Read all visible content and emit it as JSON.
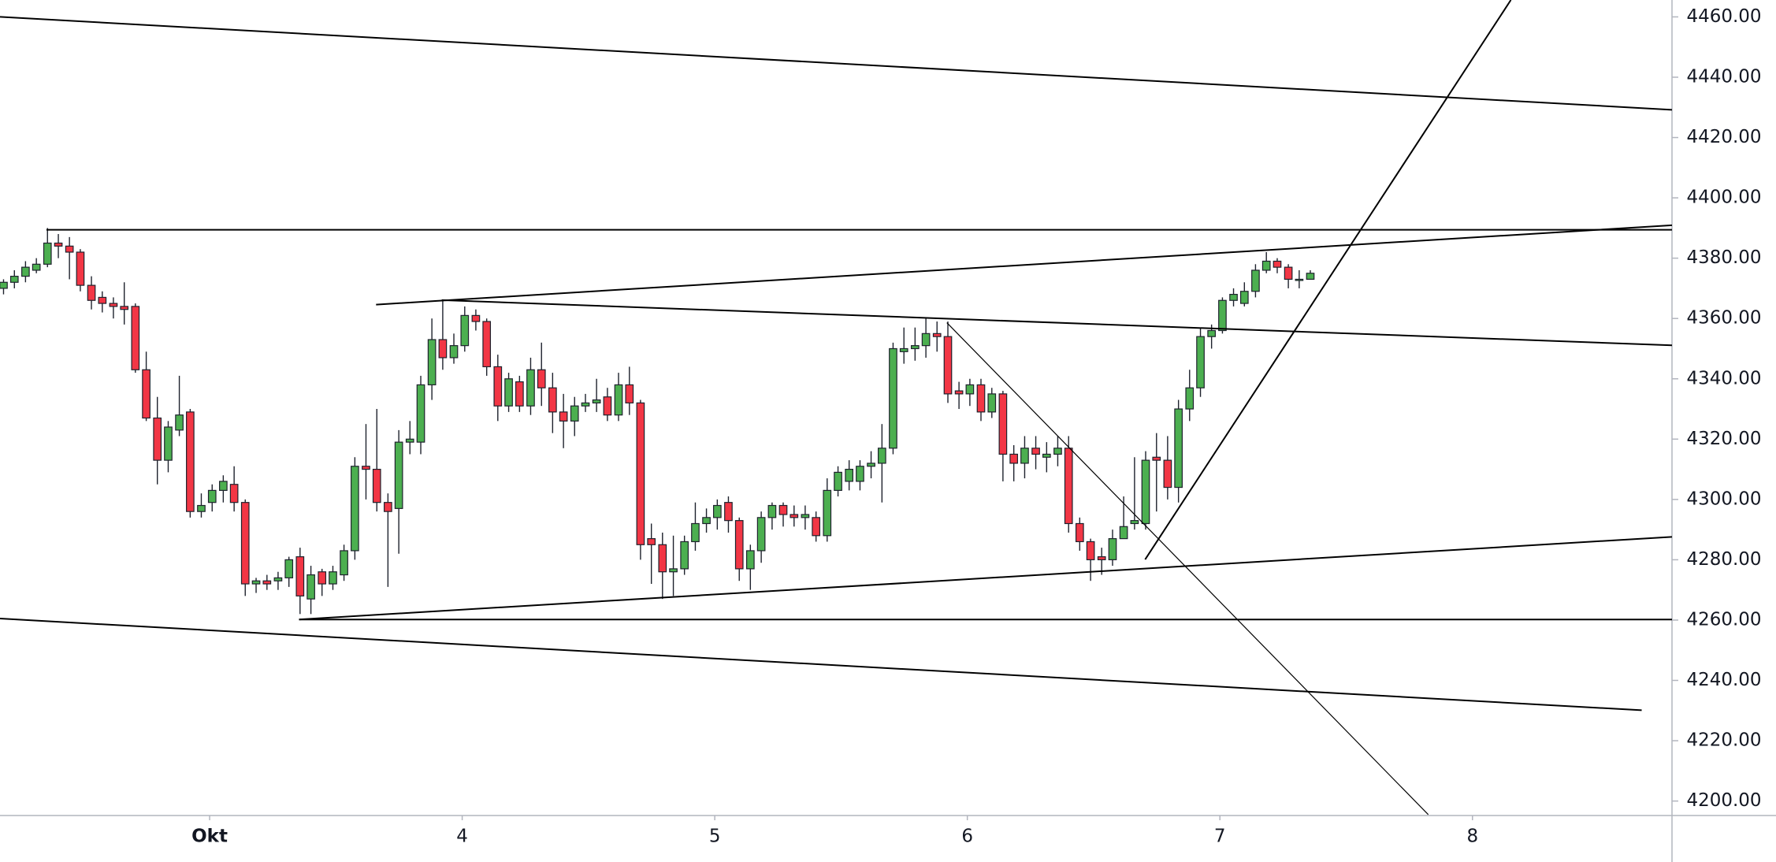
{
  "chart_data": {
    "type": "candlestick",
    "candles": {
      "x": [
        2.184,
        2.227,
        2.271,
        2.314,
        2.358,
        2.401,
        2.445,
        2.488,
        2.532,
        2.575,
        2.619,
        2.662,
        2.706,
        2.749,
        2.793,
        2.836,
        2.88,
        2.923,
        2.967,
        3.01,
        3.054,
        3.097,
        3.141,
        3.184,
        3.227,
        3.271,
        3.314,
        3.358,
        3.401,
        3.445,
        3.488,
        3.532,
        3.575,
        3.619,
        3.662,
        3.706,
        3.749,
        3.793,
        3.836,
        3.88,
        3.923,
        3.967,
        4.01,
        4.054,
        4.097,
        4.141,
        4.184,
        4.227,
        4.271,
        4.314,
        4.358,
        4.401,
        4.445,
        4.488,
        4.532,
        4.575,
        4.619,
        4.662,
        4.706,
        4.749,
        4.793,
        4.836,
        4.88,
        4.923,
        4.967,
        5.01,
        5.054,
        5.097,
        5.141,
        5.184,
        5.227,
        5.271,
        5.314,
        5.358,
        5.401,
        5.445,
        5.488,
        5.532,
        5.575,
        5.619,
        5.662,
        5.706,
        5.749,
        5.793,
        5.836,
        5.88,
        5.923,
        5.967,
        6.01,
        6.054,
        6.097,
        6.141,
        6.184,
        6.227,
        6.271,
        6.314,
        6.358,
        6.401,
        6.445,
        6.488,
        6.532,
        6.575,
        6.619,
        6.662,
        6.706,
        6.749,
        6.793,
        6.836,
        6.88,
        6.923,
        6.967,
        7.01,
        7.054,
        7.097,
        7.141,
        7.184,
        7.227,
        7.271,
        7.314,
        7.358
      ],
      "open": [
        4370,
        4372,
        4374,
        4376,
        4378,
        4385,
        4384,
        4382,
        4371,
        4367,
        4365,
        4364,
        4364,
        4343,
        4327,
        4313,
        4323,
        4329,
        4296,
        4299,
        4303,
        4305,
        4299,
        4272,
        4273,
        4273,
        4274,
        4281,
        4267,
        4276,
        4272,
        4275,
        4283,
        4311,
        4310,
        4299,
        4297,
        4319,
        4319,
        4338,
        4353,
        4347,
        4351,
        4361,
        4359,
        4344,
        4331,
        4339,
        4331,
        4343,
        4337,
        4329,
        4326,
        4331,
        4332,
        4334,
        4328,
        4338,
        4332,
        4287,
        4285,
        4276,
        4277,
        4286,
        4292,
        4294,
        4299,
        4293,
        4277,
        4283,
        4294,
        4298,
        4295,
        4294,
        4294,
        4288,
        4303,
        4306,
        4306,
        4311,
        4312,
        4317,
        4349,
        4350,
        4351,
        4355,
        4354,
        4336,
        4335,
        4338,
        4329,
        4335,
        4315,
        4312,
        4317,
        4314,
        4315,
        4317,
        4292,
        4286,
        4281,
        4280,
        4287,
        4292,
        4292,
        4314,
        4313,
        4304,
        4330,
        4337,
        4354,
        4356,
        4366,
        4365,
        4369,
        4376,
        4379,
        4377,
        4373,
        4373
      ],
      "high": [
        4373,
        4376,
        4379,
        4380,
        4390,
        4388,
        4387,
        4383,
        4374,
        4369,
        4367,
        4372,
        4365,
        4349,
        4334,
        4326,
        4341,
        4330,
        4302,
        4305,
        4308,
        4311,
        4300,
        4274,
        4275,
        4276,
        4281,
        4284,
        4278,
        4277,
        4278,
        4285,
        4314,
        4325,
        4330,
        4302,
        4323,
        4326,
        4341,
        4360,
        4366,
        4355,
        4364,
        4363,
        4360,
        4348,
        4342,
        4341,
        4347,
        4352,
        4342,
        4335,
        4334,
        4335,
        4340,
        4337,
        4342,
        4344,
        4333,
        4292,
        4289,
        4288,
        4288,
        4299,
        4297,
        4300,
        4301,
        4294,
        4285,
        4296,
        4299,
        4299,
        4298,
        4298,
        4296,
        4307,
        4311,
        4313,
        4313,
        4316,
        4325,
        4352,
        4357,
        4357,
        4360,
        4359,
        4359,
        4339,
        4340,
        4340,
        4337,
        4336,
        4318,
        4321,
        4321,
        4319,
        4321,
        4321,
        4294,
        4287,
        4284,
        4290,
        4301,
        4314,
        4316,
        4322,
        4321,
        4333,
        4343,
        4357,
        4358,
        4367,
        4370,
        4372,
        4378,
        4382,
        4380,
        4378,
        4376,
        4376
      ],
      "low": [
        4368,
        4370,
        4372,
        4375,
        4377,
        4380,
        4373,
        4369,
        4363,
        4362,
        4360,
        4358,
        4342,
        4326,
        4305,
        4309,
        4321,
        4294,
        4294,
        4296,
        4299,
        4296,
        4268,
        4269,
        4270,
        4270,
        4271,
        4262,
        4262,
        4268,
        4270,
        4273,
        4280,
        4300,
        4296,
        4271,
        4282,
        4315,
        4315,
        4333,
        4343,
        4345,
        4349,
        4356,
        4341,
        4326,
        4329,
        4329,
        4328,
        4331,
        4322,
        4317,
        4321,
        4329,
        4329,
        4326,
        4326,
        4328,
        4280,
        4272,
        4267,
        4268,
        4275,
        4283,
        4289,
        4290,
        4289,
        4273,
        4270,
        4279,
        4290,
        4291,
        4291,
        4290,
        4286,
        4286,
        4301,
        4303,
        4303,
        4307,
        4299,
        4315,
        4345,
        4346,
        4347,
        4349,
        4332,
        4330,
        4331,
        4326,
        4327,
        4306,
        4306,
        4307,
        4310,
        4309,
        4311,
        4289,
        4283,
        4273,
        4275,
        4278,
        4287,
        4290,
        4290,
        4296,
        4300,
        4299,
        4326,
        4334,
        4350,
        4355,
        4364,
        4364,
        4367,
        4375,
        4375,
        4370,
        4370,
        4373
      ],
      "close": [
        4372,
        4374,
        4377,
        4378,
        4385,
        4384,
        4382,
        4371,
        4366,
        4365,
        4364,
        4363,
        4343,
        4327,
        4313,
        4324,
        4328,
        4296,
        4298,
        4303,
        4306,
        4299,
        4272,
        4273,
        4272,
        4274,
        4280,
        4268,
        4275,
        4272,
        4276,
        4283,
        4311,
        4310,
        4299,
        4296,
        4319,
        4320,
        4338,
        4353,
        4347,
        4351,
        4361,
        4359,
        4344,
        4331,
        4340,
        4331,
        4343,
        4337,
        4329,
        4326,
        4331,
        4332,
        4333,
        4328,
        4338,
        4332,
        4285,
        4285,
        4276,
        4277,
        4286,
        4292,
        4294,
        4298,
        4293,
        4277,
        4283,
        4294,
        4298,
        4295,
        4294,
        4295,
        4288,
        4303,
        4309,
        4310,
        4311,
        4312,
        4317,
        4350,
        4350,
        4351,
        4355,
        4354,
        4335,
        4335,
        4338,
        4329,
        4335,
        4315,
        4312,
        4317,
        4315,
        4315,
        4317,
        4292,
        4286,
        4280,
        4280,
        4287,
        4291,
        4293,
        4313,
        4313,
        4304,
        4330,
        4337,
        4354,
        4356,
        4366,
        4368,
        4369,
        4376,
        4379,
        4377,
        4373,
        4373,
        4375
      ]
    },
    "up_color": "#4caf50",
    "down_color": "#f23645",
    "outline_color": "#1e222d",
    "trendlines": [
      {
        "x": [
          2.17,
          8.79
        ],
        "y": [
          4460,
          4429.2
        ]
      },
      {
        "x": [
          2.354,
          8.79
        ],
        "y": [
          4389.4,
          4389.4
        ]
      },
      {
        "x": [
          3.659,
          8.79
        ],
        "y": [
          4364.6,
          4390.9
        ]
      },
      {
        "x": [
          3.919,
          8.79
        ],
        "y": [
          4366.1,
          4351.1
        ]
      },
      {
        "x": [
          5.919,
          7.825
        ],
        "y": [
          4358.6,
          4195.5
        ]
      },
      {
        "x": [
          6.704,
          8.152
        ],
        "y": [
          4280.1,
          4465.6
        ]
      },
      {
        "x": [
          3.354,
          8.79
        ],
        "y": [
          4260.2,
          4287.6
        ]
      },
      {
        "x": [
          3.354,
          8.79
        ],
        "y": [
          4260.2,
          4260.2
        ]
      },
      {
        "x": [
          2.17,
          8.67
        ],
        "y": [
          4260.5,
          4230.1
        ]
      }
    ],
    "xlim": [
      2.17,
      8.79
    ],
    "xticks": [
      {
        "value": 3,
        "label": "Okt"
      },
      4,
      5,
      6,
      7,
      8
    ],
    "ylim": [
      4195.2,
      4465.6
    ],
    "yticks": [
      {
        "value": 4200,
        "label": "4200.00"
      },
      {
        "value": 4220,
        "label": "4220.00"
      },
      {
        "value": 4240,
        "label": "4240.00"
      },
      {
        "value": 4260,
        "label": "4260.00"
      },
      {
        "value": 4280,
        "label": "4280.00"
      },
      {
        "value": 4300,
        "label": "4300.00"
      },
      {
        "value": 4320,
        "label": "4320.00"
      },
      {
        "value": 4340,
        "label": "4340.00"
      },
      {
        "value": 4360,
        "label": "4360.00"
      },
      {
        "value": 4380,
        "label": "4380.00"
      },
      {
        "value": 4400,
        "label": "4400.00"
      },
      {
        "value": 4420,
        "label": "4420.00"
      },
      {
        "value": 4440,
        "label": "4440.00"
      },
      {
        "value": 4460,
        "label": "4460.00"
      }
    ]
  }
}
